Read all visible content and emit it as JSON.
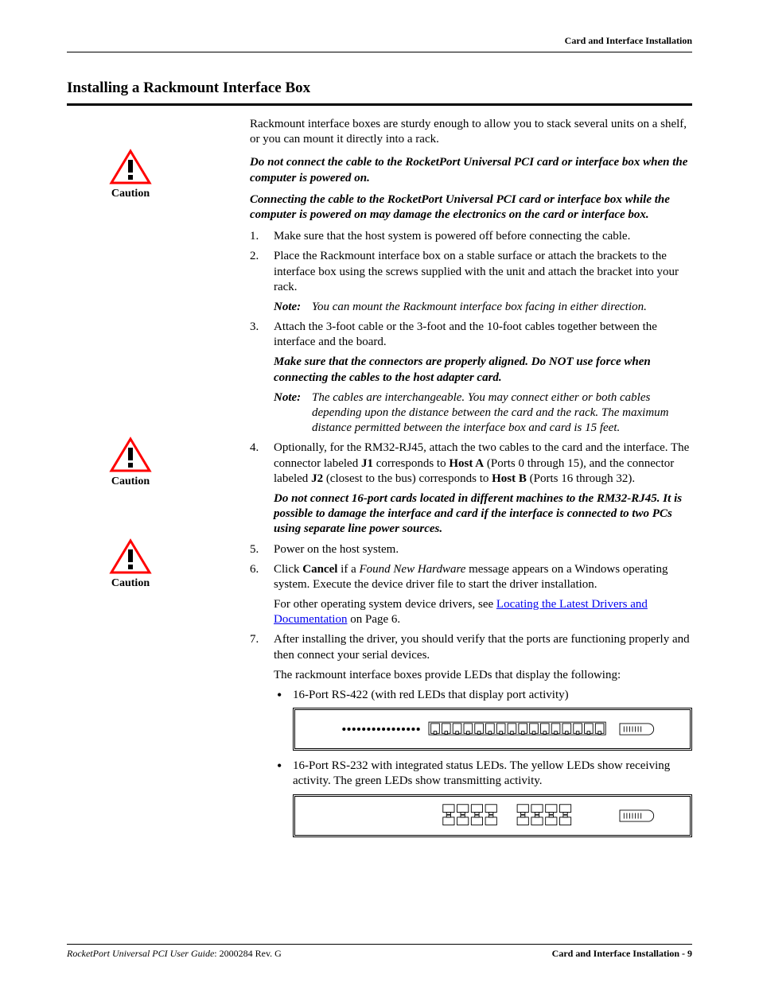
{
  "header": {
    "running_title": "Card and Interface Installation"
  },
  "section": {
    "title": "Installing a Rackmount Interface Box"
  },
  "intro": "Rackmount interface boxes are sturdy enough to allow you to stack several units on a shelf, or you can mount it directly into a rack.",
  "cautions": {
    "label": "Caution",
    "icon_color_stroke": "#ff0000",
    "icon_color_fill_bang": "#000000",
    "block1_p1": "Do not connect the cable to the RocketPort Universal PCI card or interface box when the computer is powered on.",
    "block1_p2": "Connecting the cable to the RocketPort Universal PCI card or interface box while the computer is powered on may damage the electronics on the card or interface box.",
    "block2": "Make sure that the connectors are properly aligned. Do NOT use force when connecting the cables to the host adapter card.",
    "block3": "Do not connect 16-port cards located in different machines to the RM32-RJ45. It is possible to damage the interface and card if the interface is connected to two PCs using separate line power sources."
  },
  "steps": {
    "s1": "Make sure that the host system is powered off before connecting the cable.",
    "s2": "Place the Rackmount interface box on a stable surface or attach the brackets to the interface box using the screws supplied with the unit and attach the bracket into your rack.",
    "s2_note": "You can mount the Rackmount interface box facing in either direction.",
    "s3": "Attach the 3-foot cable or the 3-foot and the 10-foot cables together between the interface and the board.",
    "s3_note": "The cables are interchangeable. You may connect either or both cables depending upon the distance between the card and the rack. The maximum distance permitted between the interface box and card is 15 feet.",
    "s4_a": "Optionally, for the RM32-RJ45, attach the two cables to the card and the interface. The connector labeled ",
    "s4_j1": "J1",
    "s4_b": " corresponds to ",
    "s4_hostA": "Host A",
    "s4_c": " (Ports 0 through 15), and the connector labeled ",
    "s4_j2": "J2",
    "s4_d": " (closest to the bus) corresponds to ",
    "s4_hostB": "Host B",
    "s4_e": " (Ports 16 through 32).",
    "s5": "Power on the host system.",
    "s6_a": "Click ",
    "s6_cancel": "Cancel",
    "s6_b": " if a ",
    "s6_fnh": "Found New Hardware",
    "s6_c": " message appears on a Windows operating system. Execute the device driver file to start the driver installation.",
    "s6_p2_a": "For other operating system device drivers, see ",
    "s6_link": "Locating the Latest Drivers and Documentation",
    "s6_p2_b": " on Page 6.",
    "s7": "After installing the driver, you should verify that the ports are functioning properly and then connect your serial devices.",
    "s7_p2": "The rackmount interface boxes provide LEDs that display the following:",
    "bullet1": "16-Port RS-422 (with red LEDs that display port activity)",
    "bullet2": "16-Port RS-232 with integrated status LEDs. The yellow LEDs show receiving activity. The green LEDs show transmitting activity."
  },
  "note_label": "Note:",
  "footer": {
    "left_italic": "RocketPort Universal PCI User Guide",
    "left_rest": ": 2000284 Rev. G",
    "right": "Card and Interface Installation - 9"
  },
  "link_color": "#0000ee"
}
